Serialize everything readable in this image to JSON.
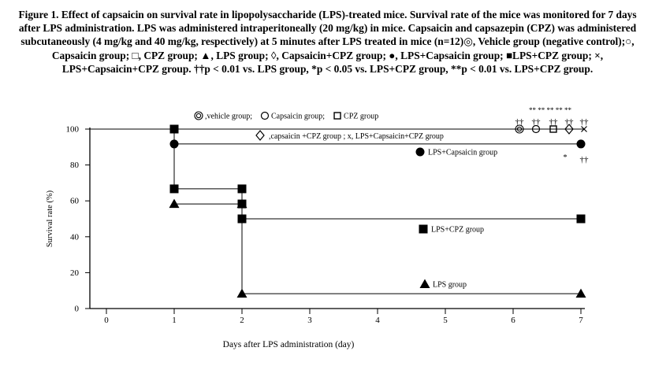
{
  "caption": "Figure 1. Effect of capsaicin on survival rate in lipopolysaccharide (LPS)-treated mice. Survival rate of the mice was monitored for 7 days after LPS administration. LPS was administered intraperitoneally (20 mg/kg) in mice. Capsaicin and capsazepin (CPZ) was administered subcutaneously (4 mg/kg and 40 mg/kg, respectively) at 5 minutes after LPS treated in mice (n=12)◎, Vehicle group (negative control);○, Capsaicin group; □, CPZ group; ▲, LPS group; ◊, Capsaicin+CPZ group; ●, LPS+Capsaicin group; ■LPS+CPZ group; ×, LPS+Capsaicin+CPZ group. ††p < 0.01 vs. LPS group, *p < 0.05 vs. LPS+CPZ group, **p < 0.01 vs. LPS+CPZ group.",
  "chart_data": {
    "type": "line",
    "step": true,
    "xlabel": "Days after LPS administration (day)",
    "ylabel": "Survival rate (%)",
    "xlim": [
      0,
      7
    ],
    "ylim": [
      0,
      100
    ],
    "x_ticks": [
      "0",
      "1",
      "2",
      "3",
      "4",
      "5",
      "6",
      "7"
    ],
    "y_ticks": [
      "0",
      "20",
      "40",
      "60",
      "80",
      "100"
    ],
    "grid": false,
    "legend": {
      "line1": [
        {
          "marker": "double-circle",
          "label": ",vehicle group;"
        },
        {
          "marker": "open-circle",
          "label": "Capsaicin group;"
        },
        {
          "marker": "open-square",
          "label": "CPZ group"
        }
      ],
      "line2": {
        "marker": "open-diamond",
        "label": ",capsaicin +CPZ group ; x, LPS+Capsaicin+CPZ group"
      }
    },
    "series": [
      {
        "name": "LPS+Capsaicin group",
        "marker": "filled-circle",
        "x": [
          1,
          7
        ],
        "y": [
          91.7,
          91.7
        ]
      },
      {
        "name": "LPS+CPZ group",
        "marker": "filled-square",
        "x": [
          1,
          1,
          2,
          2,
          7
        ],
        "y": [
          100,
          66.7,
          66.7,
          50,
          50
        ]
      },
      {
        "name": "LPS group",
        "marker": "filled-triangle",
        "x": [
          1,
          2,
          2,
          7
        ],
        "y": [
          58.3,
          58.3,
          8.3,
          8.3
        ]
      },
      {
        "name": "",
        "marker": "filled-square",
        "x": [
          2
        ],
        "y": [
          58.3
        ]
      }
    ],
    "top_line_y": 100,
    "annotations": [
      {
        "text": "LPS+Capsaicin group",
        "marker": "filled-circle"
      },
      {
        "text": "LPS+CPZ group",
        "marker": "filled-square"
      },
      {
        "text": "LPS group",
        "marker": "filled-triangle"
      }
    ],
    "significance": {
      "top_stars": "** ** ** ** **",
      "top_daggers": [
        "††",
        "††",
        "††",
        "††",
        "††"
      ],
      "top_markers": [
        "double-circle",
        "open-circle",
        "open-square",
        "open-diamond",
        "cross"
      ],
      "right_star": "*",
      "right_daggers": "††"
    }
  }
}
